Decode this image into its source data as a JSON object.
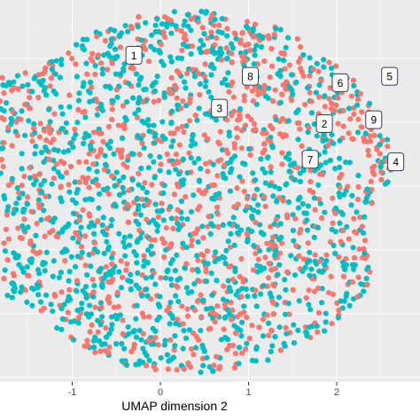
{
  "chart_data": {
    "type": "scatter",
    "title": "",
    "xlabel": "UMAP dimension 2",
    "ylabel": "",
    "x_ticks": [
      -1,
      0,
      1,
      2
    ],
    "x_tick_labels": [
      "-1",
      "0",
      "1",
      "2"
    ],
    "xlim": [
      -1.82,
      2.68
    ],
    "ylim": [
      -3.0,
      3.0
    ],
    "grid": true,
    "legend": "none visible",
    "series": [
      {
        "color": "#F8766D",
        "approx_point_count": 800
      },
      {
        "color": "#00BFC4",
        "approx_point_count": 1300
      }
    ],
    "cluster_labels": [
      {
        "text": "1",
        "x": -0.3,
        "y": 2.05
      },
      {
        "text": "8",
        "x": 1.02,
        "y": 1.72
      },
      {
        "text": "6",
        "x": 2.04,
        "y": 1.62
      },
      {
        "text": "5",
        "x": 2.6,
        "y": 1.72
      },
      {
        "text": "3",
        "x": 0.67,
        "y": 1.22
      },
      {
        "text": "2",
        "x": 1.86,
        "y": 0.98
      },
      {
        "text": "9",
        "x": 2.42,
        "y": 1.04
      },
      {
        "text": "7",
        "x": 1.7,
        "y": 0.42
      },
      {
        "text": "4",
        "x": 2.67,
        "y": 0.38
      }
    ]
  }
}
